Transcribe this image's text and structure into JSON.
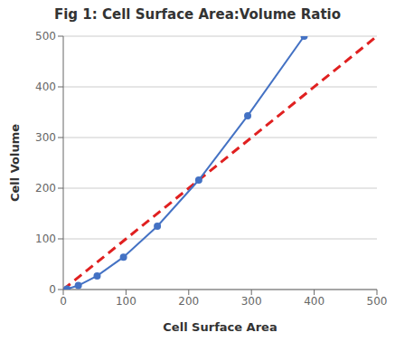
{
  "chart_data": {
    "type": "line",
    "title": "Fig 1: Cell Surface Area:Volume Ratio",
    "xlabel": "Cell Surface Area",
    "ylabel": "Cell Volume",
    "xlim": [
      0,
      500
    ],
    "ylim": [
      0,
      500
    ],
    "xticks": [
      0,
      100,
      200,
      300,
      400,
      500
    ],
    "yticks": [
      0,
      100,
      200,
      300,
      400,
      500
    ],
    "grid": "y",
    "series": [
      {
        "color": "#E02020",
        "x": [
          0,
          500
        ],
        "values": [
          0,
          500
        ],
        "line_style": "dashed",
        "marker": "none"
      },
      {
        "color": "#4472C4",
        "x": [
          6,
          24,
          54,
          96,
          150,
          216,
          294,
          384
        ],
        "values": [
          1,
          8,
          27,
          64,
          125,
          216,
          343,
          500
        ],
        "line_style": "solid",
        "marker": "circle"
      }
    ]
  }
}
